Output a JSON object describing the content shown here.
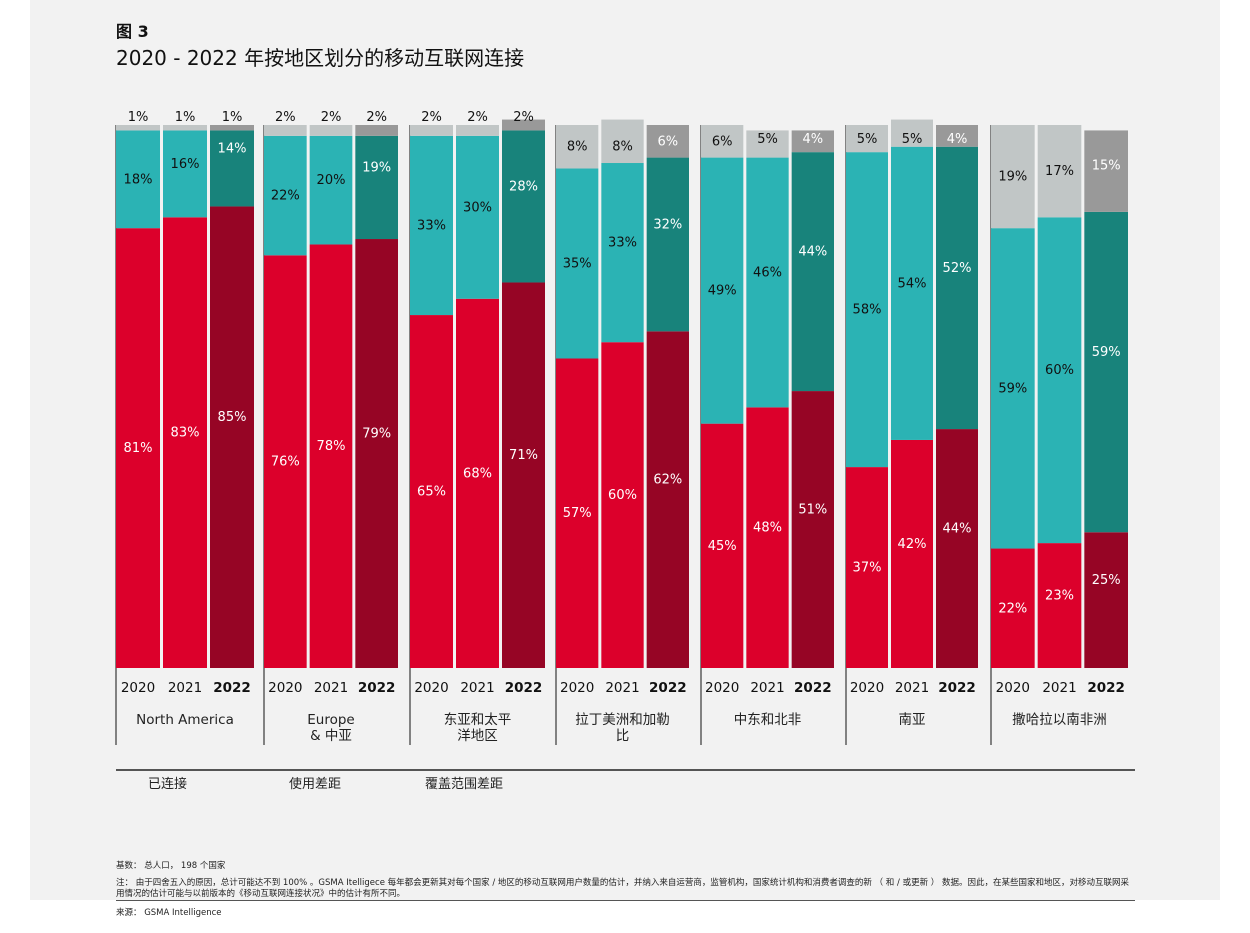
{
  "figure_label": "图 3",
  "title": "2020 - 2022 年按地区划分的移动互联网连接",
  "chart_data": {
    "type": "bar",
    "stacked": true,
    "normalized": true,
    "ylim": [
      0,
      100
    ],
    "years": [
      "2020",
      "2021",
      "2022"
    ],
    "categories": [
      "North America",
      "Europe\n& 中亚",
      "东亚和太平\n洋地区",
      "拉丁美洲和加勒\n比",
      "中东和北非",
      "南亚",
      "撒哈拉以南非洲"
    ],
    "series": [
      {
        "name": "已连接",
        "colors": [
          "#dc002b",
          "#dc002b",
          "#960525"
        ],
        "values": [
          [
            81,
            83,
            85
          ],
          [
            76,
            78,
            79
          ],
          [
            65,
            68,
            71
          ],
          [
            57,
            60,
            62
          ],
          [
            45,
            48,
            51
          ],
          [
            37,
            42,
            44
          ],
          [
            22,
            23,
            25
          ]
        ]
      },
      {
        "name": "使用差距",
        "colors": [
          "#2bb3b4",
          "#2bb3b4",
          "#18837b"
        ],
        "values": [
          [
            18,
            16,
            14
          ],
          [
            22,
            20,
            19
          ],
          [
            33,
            30,
            28
          ],
          [
            35,
            33,
            32
          ],
          [
            49,
            46,
            44
          ],
          [
            58,
            54,
            52
          ],
          [
            59,
            60,
            59
          ]
        ]
      },
      {
        "name": "覆盖范围差距",
        "colors": [
          "#c1c6c6",
          "#c1c6c6",
          "#999999"
        ],
        "values": [
          [
            1,
            1,
            1
          ],
          [
            2,
            2,
            2
          ],
          [
            2,
            2,
            2
          ],
          [
            8,
            8,
            6
          ],
          [
            6,
            5,
            4
          ],
          [
            5,
            5,
            4
          ],
          [
            19,
            17,
            15
          ]
        ]
      }
    ],
    "legend_position": "bottom",
    "grid": false
  },
  "legend": [
    "已连接",
    "使用差距",
    "覆盖范围差距"
  ],
  "footnotes": {
    "base": "基数： 总人口， 198 个国家",
    "note": "注： 由于四舍五入的原因，总计可能达不到 100% 。GSMA Itelligece 每年都会更新其对每个国家 / 地区的移动互联网用户数量的估计，并纳入来自运营商，监管机构，国家统计机构和消费者调查的新 （ 和 / 或更新 ） 数据。因此，在某些国家和地区，对移动互联网采用情况的估计可能与以前版本的《移动互联网连接状况》中的估计有所不同。",
    "source": "来源： GSMA Intelligence"
  }
}
